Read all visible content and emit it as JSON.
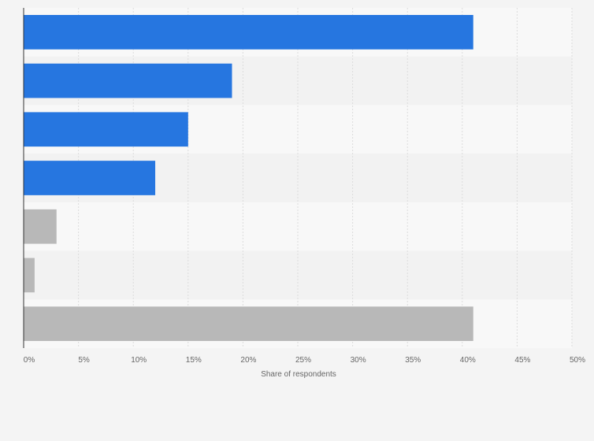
{
  "chart_data": {
    "type": "bar",
    "orientation": "horizontal",
    "categories": [
      "",
      "",
      "",
      "",
      "",
      "",
      ""
    ],
    "values": [
      41,
      19,
      15,
      12,
      3,
      1,
      41
    ],
    "bar_colors": [
      "#2676e0",
      "#2676e0",
      "#2676e0",
      "#2676e0",
      "#b8b8b8",
      "#b8b8b8",
      "#b8b8b8"
    ],
    "xlabel": "Share of respondents",
    "ylabel": "",
    "xlim": [
      0,
      50
    ],
    "x_ticks": [
      "0%",
      "5%",
      "10%",
      "15%",
      "20%",
      "25%",
      "30%",
      "35%",
      "40%",
      "45%",
      "50%"
    ],
    "grid": true,
    "legend": "none",
    "colors": {
      "primary": "#2676e0",
      "secondary": "#b8b8b8",
      "band_light": "#f8f8f8",
      "band_dark": "#f2f2f2"
    }
  }
}
